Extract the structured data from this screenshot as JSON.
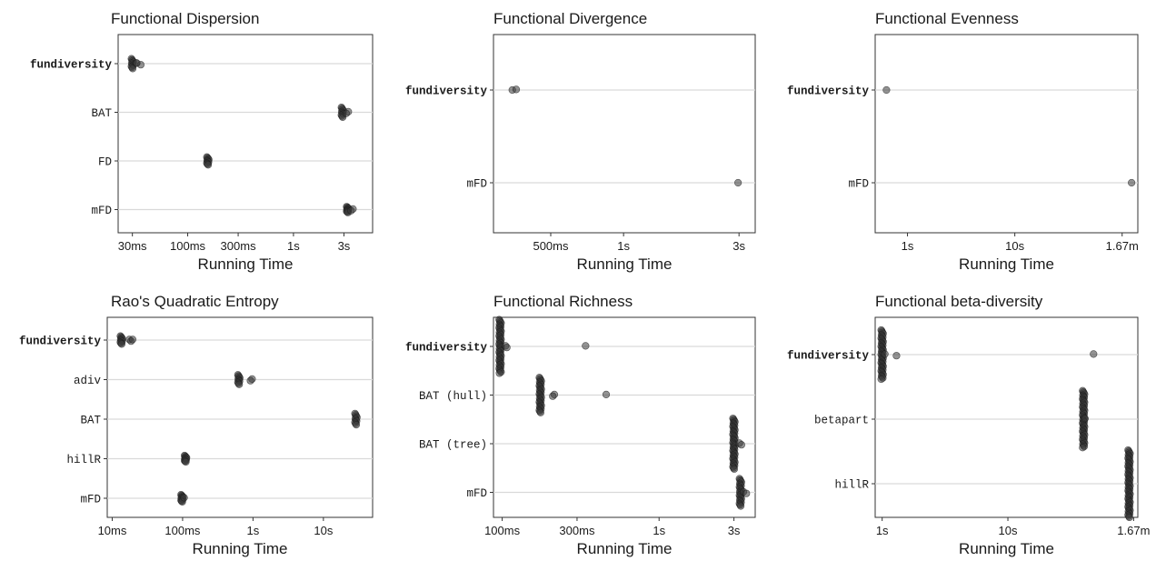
{
  "chart_data": [
    {
      "type": "scatter",
      "title": "Functional Dispersion",
      "xlabel": "Running Time",
      "log_x": true,
      "xlim_seconds": [
        0.022,
        5.6
      ],
      "x_ticks": [
        {
          "label": "30ms",
          "seconds": 0.03
        },
        {
          "label": "100ms",
          "seconds": 0.1
        },
        {
          "label": "300ms",
          "seconds": 0.3
        },
        {
          "label": "1s",
          "seconds": 1
        },
        {
          "label": "3s",
          "seconds": 3
        }
      ],
      "categories": [
        "fundiversity",
        "BAT",
        "FD",
        "mFD"
      ],
      "bold_categories": [
        "fundiversity"
      ],
      "series": [
        {
          "category": "fundiversity",
          "median_seconds": 0.03,
          "spread": 0.1,
          "outliers_seconds": [
            0.0325,
            0.036,
            0.033
          ]
        },
        {
          "category": "BAT",
          "median_seconds": 2.9,
          "spread": 0.1,
          "outliers_seconds": [
            3.3,
            3.15
          ]
        },
        {
          "category": "FD",
          "median_seconds": 0.155,
          "spread": 0.08,
          "outliers_seconds": []
        },
        {
          "category": "mFD",
          "median_seconds": 3.25,
          "spread": 0.06,
          "outliers_seconds": [
            3.65,
            3.5
          ]
        }
      ]
    },
    {
      "type": "scatter",
      "title": "Functional Divergence",
      "xlabel": "Running Time",
      "log_x": true,
      "xlim_seconds": [
        0.29,
        3.5
      ],
      "x_ticks": [
        {
          "label": "500ms",
          "seconds": 0.5
        },
        {
          "label": "1s",
          "seconds": 1
        },
        {
          "label": "3s",
          "seconds": 3
        }
      ],
      "categories": [
        "fundiversity",
        "mFD"
      ],
      "bold_categories": [
        "fundiversity"
      ],
      "series": [
        {
          "category": "fundiversity",
          "median_seconds": 0.35,
          "spread": 0.0,
          "outliers_seconds": [
            0.36
          ]
        },
        {
          "category": "mFD",
          "median_seconds": 3.0,
          "spread": 0.0,
          "outliers_seconds": []
        }
      ]
    },
    {
      "type": "scatter",
      "title": "Functional Evenness",
      "xlabel": "Running Time",
      "log_x": true,
      "xlim_seconds": [
        0.5,
        140
      ],
      "x_ticks": [
        {
          "label": "1s",
          "seconds": 1
        },
        {
          "label": "10s",
          "seconds": 10
        },
        {
          "label": "1.67m",
          "seconds": 100
        }
      ],
      "categories": [
        "fundiversity",
        "mFD"
      ],
      "bold_categories": [
        "fundiversity"
      ],
      "series": [
        {
          "category": "fundiversity",
          "median_seconds": 0.65,
          "spread": 0.0,
          "outliers_seconds": []
        },
        {
          "category": "mFD",
          "median_seconds": 125,
          "spread": 0.0,
          "outliers_seconds": []
        }
      ]
    },
    {
      "type": "scatter",
      "title": "Rao's Quadratic Entropy",
      "xlabel": "Running Time",
      "log_x": true,
      "xlim_seconds": [
        0.0085,
        50
      ],
      "x_ticks": [
        {
          "label": "10ms",
          "seconds": 0.01
        },
        {
          "label": "100ms",
          "seconds": 0.1
        },
        {
          "label": "1s",
          "seconds": 1
        },
        {
          "label": "10s",
          "seconds": 10
        }
      ],
      "categories": [
        "fundiversity",
        "adiv",
        "BAT",
        "hillR",
        "mFD"
      ],
      "bold_categories": [
        "fundiversity"
      ],
      "series": [
        {
          "category": "fundiversity",
          "median_seconds": 0.0135,
          "spread": 0.1,
          "outliers_seconds": [
            0.0175,
            0.0185,
            0.0195
          ]
        },
        {
          "category": "adiv",
          "median_seconds": 0.63,
          "spread": 0.12,
          "outliers_seconds": [
            0.97,
            0.92
          ]
        },
        {
          "category": "BAT",
          "median_seconds": 29,
          "spread": 0.14,
          "outliers_seconds": []
        },
        {
          "category": "hillR",
          "median_seconds": 0.11,
          "spread": 0.08,
          "outliers_seconds": []
        },
        {
          "category": "mFD",
          "median_seconds": 0.098,
          "spread": 0.09,
          "outliers_seconds": [
            0.105
          ]
        }
      ]
    },
    {
      "type": "scatter",
      "title": "Functional Richness",
      "xlabel": "Running Time",
      "log_x": true,
      "xlim_seconds": [
        0.088,
        4.1
      ],
      "x_ticks": [
        {
          "label": "100ms",
          "seconds": 0.1
        },
        {
          "label": "300ms",
          "seconds": 0.3
        },
        {
          "label": "1s",
          "seconds": 1
        },
        {
          "label": "3s",
          "seconds": 3
        }
      ],
      "categories": [
        "fundiversity",
        "BAT (hull)",
        "BAT (tree)",
        "mFD"
      ],
      "bold_categories": [
        "fundiversity"
      ],
      "series": [
        {
          "category": "fundiversity",
          "median_seconds": 0.097,
          "spread": 0.55,
          "outliers_seconds": [
            0.105,
            0.107,
            0.34
          ]
        },
        {
          "category": "BAT (hull)",
          "median_seconds": 0.175,
          "spread": 0.36,
          "outliers_seconds": [
            0.215,
            0.21,
            0.46
          ]
        },
        {
          "category": "BAT (tree)",
          "median_seconds": 3.0,
          "spread": 0.52,
          "outliers_seconds": [
            3.25,
            3.35
          ]
        },
        {
          "category": "mFD",
          "median_seconds": 3.3,
          "spread": 0.28,
          "outliers_seconds": [
            3.45,
            3.6
          ]
        }
      ]
    },
    {
      "type": "scatter",
      "title": "Functional beta-diversity",
      "xlabel": "Running Time",
      "log_x": true,
      "xlim_seconds": [
        0.88,
        108
      ],
      "x_ticks": [
        {
          "label": "1s",
          "seconds": 1
        },
        {
          "label": "10s",
          "seconds": 10
        },
        {
          "label": "1.67m",
          "seconds": 100
        }
      ],
      "categories": [
        "fundiversity",
        "betapart",
        "hillR"
      ],
      "bold_categories": [
        "fundiversity"
      ],
      "series": [
        {
          "category": "fundiversity",
          "median_seconds": 1.0,
          "spread": 0.38,
          "outliers_seconds": [
            1.05,
            1.3,
            48
          ]
        },
        {
          "category": "betapart",
          "median_seconds": 40,
          "spread": 0.44,
          "outliers_seconds": [
            41
          ]
        },
        {
          "category": "hillR",
          "median_seconds": 92,
          "spread": 0.52,
          "outliers_seconds": []
        }
      ]
    }
  ]
}
